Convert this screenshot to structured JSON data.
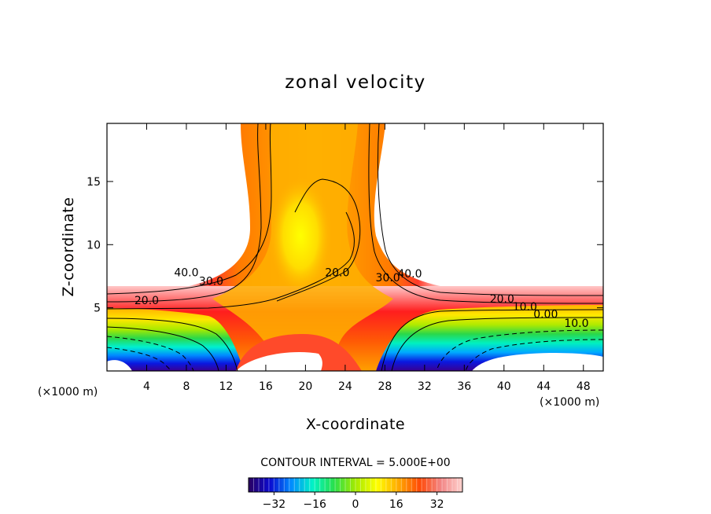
{
  "chart_data": {
    "type": "contour",
    "title": "zonal velocity",
    "xlabel": "X-coordinate",
    "ylabel": "Z-coordinate",
    "x_unit_left": "(×1000 m)",
    "x_unit_right": "(×1000 m)",
    "xlim": [
      0,
      50
    ],
    "ylim": [
      0,
      19.6
    ],
    "xticks": [
      4,
      8,
      12,
      16,
      20,
      24,
      28,
      32,
      36,
      40,
      44,
      48
    ],
    "yticks": [
      5,
      10,
      15
    ],
    "contour_interval_text": "CONTOUR INTERVAL = 5.000E+00",
    "contour_interval": 5.0,
    "contour_labels": [
      {
        "text": "40.0",
        "x": 8.0,
        "z": 7.5
      },
      {
        "text": "30.0",
        "x": 10.5,
        "z": 6.8
      },
      {
        "text": "20.0",
        "x": 4.0,
        "z": 5.3
      },
      {
        "text": "20.0",
        "x": 23.2,
        "z": 7.5
      },
      {
        "text": "30.0",
        "x": 28.3,
        "z": 7.1
      },
      {
        "text": "40.0",
        "x": 30.5,
        "z": 7.4
      },
      {
        "text": "20.0",
        "x": 39.8,
        "z": 5.4
      },
      {
        "text": "10.0",
        "x": 42.1,
        "z": 4.8
      },
      {
        "text": "0.00",
        "x": 44.2,
        "z": 4.2
      },
      {
        "text": "10.0",
        "x": 47.3,
        "z": 3.5
      }
    ],
    "colorbar": {
      "ticks": [
        -32,
        -16,
        0,
        16,
        32
      ],
      "range": [
        -42,
        42
      ],
      "stops": [
        "#2a0060",
        "#0b0bd0",
        "#008cff",
        "#00f2c6",
        "#29e04b",
        "#a4ea00",
        "#ffff00",
        "#ffaa00",
        "#ff4a08",
        "#f28686",
        "#ffd4d0"
      ]
    }
  }
}
